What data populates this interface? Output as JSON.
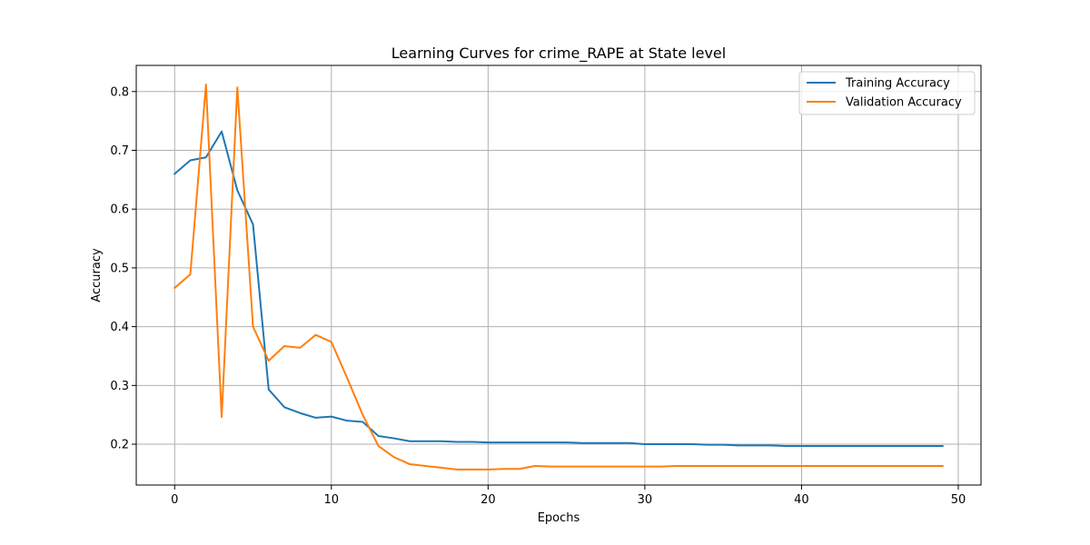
{
  "chart_data": {
    "type": "line",
    "title": "Learning Curves for crime_RAPE at State level",
    "xlabel": "Epochs",
    "ylabel": "Accuracy",
    "xlim": [
      -2.45,
      51.45
    ],
    "ylim": [
      0.1305,
      0.8445
    ],
    "xticks": [
      0,
      10,
      20,
      30,
      40,
      50
    ],
    "yticks": [
      0.2,
      0.3,
      0.4,
      0.5,
      0.6,
      0.7,
      0.8
    ],
    "xtick_labels": [
      "0",
      "10",
      "20",
      "30",
      "40",
      "50"
    ],
    "ytick_labels": [
      "0.2",
      "0.3",
      "0.4",
      "0.5",
      "0.6",
      "0.7",
      "0.8"
    ],
    "grid": true,
    "legend_position": "top-right",
    "x": [
      0,
      1,
      2,
      3,
      4,
      5,
      6,
      7,
      8,
      9,
      10,
      11,
      12,
      13,
      14,
      15,
      16,
      17,
      18,
      19,
      20,
      21,
      22,
      23,
      24,
      25,
      26,
      27,
      28,
      29,
      30,
      31,
      32,
      33,
      34,
      35,
      36,
      37,
      38,
      39,
      40,
      41,
      42,
      43,
      44,
      45,
      46,
      47,
      48,
      49
    ],
    "series": [
      {
        "name": "Training Accuracy",
        "color": "#1f77b4",
        "values": [
          0.66,
          0.683,
          0.688,
          0.732,
          0.632,
          0.574,
          0.293,
          0.263,
          0.253,
          0.245,
          0.247,
          0.24,
          0.238,
          0.214,
          0.21,
          0.205,
          0.205,
          0.205,
          0.204,
          0.204,
          0.203,
          0.203,
          0.203,
          0.203,
          0.203,
          0.203,
          0.202,
          0.202,
          0.202,
          0.202,
          0.2,
          0.2,
          0.2,
          0.2,
          0.199,
          0.199,
          0.198,
          0.198,
          0.198,
          0.197,
          0.197,
          0.197,
          0.197,
          0.197,
          0.197,
          0.197,
          0.197,
          0.197,
          0.197,
          0.197
        ]
      },
      {
        "name": "Validation Accuracy",
        "color": "#ff7f0e",
        "values": [
          0.466,
          0.489,
          0.812,
          0.246,
          0.807,
          0.4,
          0.342,
          0.367,
          0.364,
          0.386,
          0.374,
          0.313,
          0.25,
          0.197,
          0.178,
          0.166,
          0.163,
          0.16,
          0.157,
          0.157,
          0.157,
          0.158,
          0.158,
          0.163,
          0.162,
          0.162,
          0.162,
          0.162,
          0.162,
          0.162,
          0.162,
          0.162,
          0.163,
          0.163,
          0.163,
          0.163,
          0.163,
          0.163,
          0.163,
          0.163,
          0.163,
          0.163,
          0.163,
          0.163,
          0.163,
          0.163,
          0.163,
          0.163,
          0.163,
          0.163
        ]
      }
    ]
  }
}
